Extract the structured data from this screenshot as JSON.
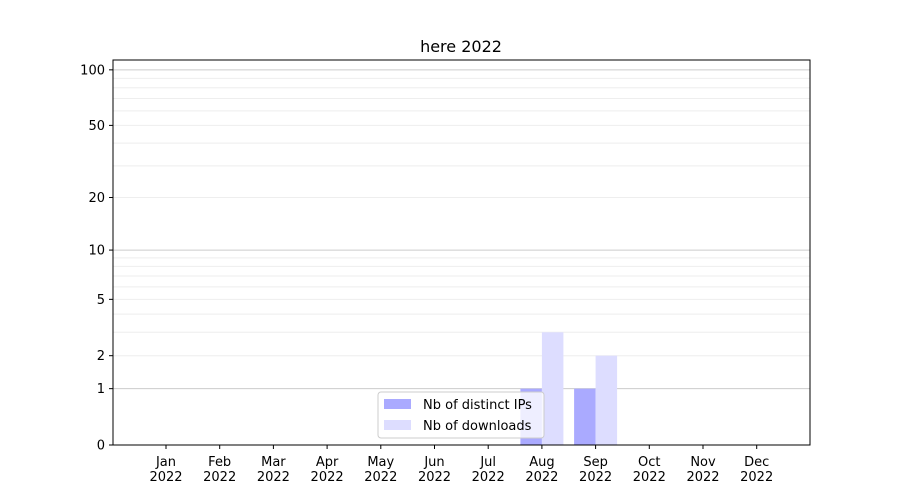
{
  "chart_data": {
    "type": "bar",
    "title": "here 2022",
    "categories": [
      "Jan\n2022",
      "Feb\n2022",
      "Mar\n2022",
      "Apr\n2022",
      "May\n2022",
      "Jun\n2022",
      "Jul\n2022",
      "Aug\n2022",
      "Sep\n2022",
      "Oct\n2022",
      "Nov\n2022",
      "Dec\n2022"
    ],
    "yscale": "log(1+y)",
    "yticks": [
      0,
      1,
      2,
      5,
      10,
      20,
      50,
      100
    ],
    "ylim": [
      0,
      113
    ],
    "grid": true,
    "legend_position": "lower center",
    "series": [
      {
        "name": "Nb of distinct IPs",
        "color": "#aaaaff",
        "values": [
          0,
          0,
          0,
          0,
          0,
          0,
          0,
          1,
          1,
          0,
          0,
          0
        ]
      },
      {
        "name": "Nb of downloads",
        "color": "#ddddff",
        "values": [
          0,
          0,
          0,
          0,
          0,
          0,
          0,
          3,
          2,
          0,
          0,
          0
        ]
      }
    ]
  }
}
